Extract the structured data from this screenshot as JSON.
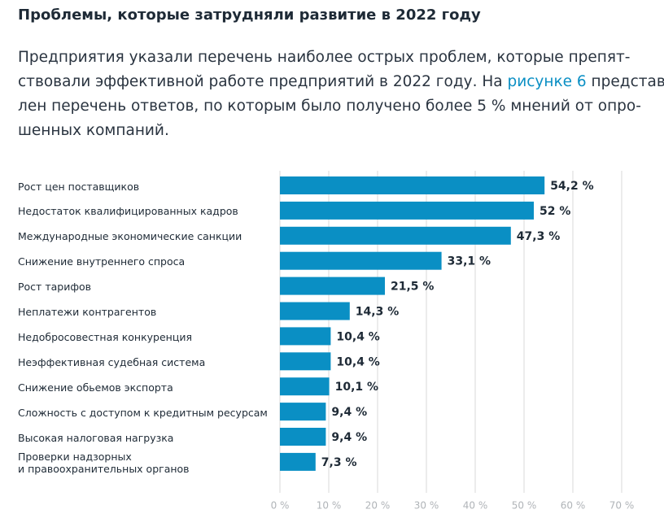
{
  "header": {
    "title": "Проблемы, которые затрудняли развитие в 2022 году"
  },
  "paragraph": {
    "lines": [
      "Предприятия указали перечень наиболее острых проблем, которые препят-",
      {
        "before": "ствовали эффективной работе предприятий в 2022 году. На ",
        "link": "рисунке 6",
        "after": " представ-"
      },
      "лен перечень ответов, по которым было получено более 5 % мнений от опро-",
      "шенных компаний."
    ]
  },
  "chart_data": {
    "type": "barh",
    "categories": [
      "Рост цен поставщиков",
      "Недостаток квалифицированных кадров",
      "Международные экономические санкции",
      "Снижение внутреннего спроса",
      "Рост тарифов",
      "Неплатежи контрагентов",
      "Недобросовестная конкуренция",
      "Неэффективная судебная система",
      "Снижение обьемов экспорта",
      "Сложность с доступом к кредитным ресурсам",
      "Высокая налоговая нагрузка",
      "Проверки надзорных\nи правоохранительных органов"
    ],
    "values": [
      54.2,
      52,
      47.3,
      33.1,
      21.5,
      14.3,
      10.4,
      10.4,
      10.1,
      9.4,
      9.4,
      7.3
    ],
    "value_labels": [
      "54,2 %",
      "52 %",
      "47,3 %",
      "33,1 %",
      "21,5 %",
      "14,3 %",
      "10,4 %",
      "10,4 %",
      "10,1 %",
      "9,4 %",
      "9,4 %",
      "7,3 %"
    ],
    "color": "#0a8fc4",
    "xlim": [
      0,
      70
    ],
    "xticks": [
      {
        "value": 0,
        "label": "0 %"
      },
      {
        "value": 10,
        "label": "10 %"
      },
      {
        "value": 20,
        "label": "20 %"
      },
      {
        "value": 30,
        "label": "30 %"
      },
      {
        "value": 40,
        "label": "40 %"
      },
      {
        "value": 50,
        "label": "50 %"
      },
      {
        "value": 60,
        "label": "60 %"
      },
      {
        "value": 70,
        "label": "70 %"
      }
    ],
    "grid": true
  }
}
